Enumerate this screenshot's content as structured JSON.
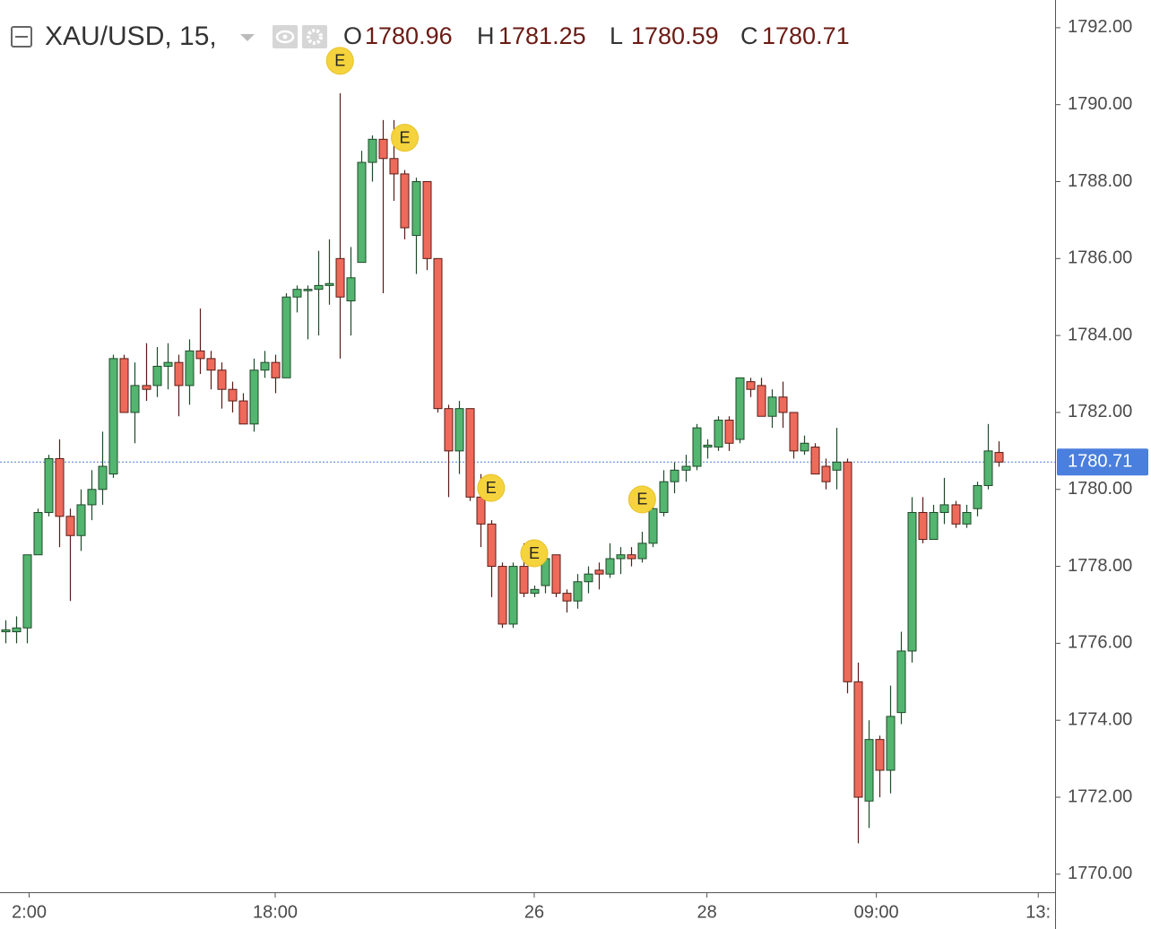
{
  "chart_data": {
    "type": "candlestick",
    "title": "XAU/USD, 15,",
    "ohlc_labels": [
      "O",
      "H",
      "L",
      "C"
    ],
    "up_color": "#53b56f",
    "down_color": "#ee6a5a",
    "x": [
      0,
      1,
      2,
      3,
      4,
      5,
      6,
      7,
      8,
      9,
      10,
      11,
      12,
      13,
      14,
      15,
      16,
      17,
      18,
      19,
      20,
      21,
      22,
      23,
      24,
      25,
      26,
      27,
      28,
      29,
      30,
      31,
      32,
      33,
      34,
      35,
      36,
      37,
      38,
      39,
      40,
      41,
      42,
      43,
      44,
      45,
      46,
      47,
      48,
      49,
      50,
      51,
      52,
      53,
      54,
      55,
      56,
      57,
      58,
      59,
      60,
      61,
      62,
      63,
      64,
      65,
      66,
      67,
      68,
      69,
      70,
      71,
      72,
      73,
      74,
      75,
      76,
      77,
      78,
      79,
      80,
      81,
      82,
      83,
      84,
      85,
      86,
      87,
      88,
      89,
      90,
      91,
      92
    ],
    "open": [
      1776.3,
      1776.3,
      1776.4,
      1778.3,
      1779.4,
      1780.8,
      1779.3,
      1778.8,
      1779.6,
      1780.0,
      1780.4,
      1783.4,
      1782.0,
      1782.7,
      1782.7,
      1783.2,
      1783.3,
      1782.7,
      1783.6,
      1783.4,
      1783.1,
      1782.6,
      1782.3,
      1781.7,
      1783.1,
      1783.3,
      1782.9,
      1785.0,
      1785.2,
      1785.2,
      1785.3,
      1786.0,
      1784.9,
      1785.9,
      1788.5,
      1789.1,
      1788.6,
      1788.2,
      1786.6,
      1788.0,
      1786.0,
      1782.1,
      1781.0,
      1782.1,
      1779.8,
      1779.1,
      1778.0,
      1776.5,
      1778.0,
      1777.3,
      1777.5,
      1778.3,
      1777.3,
      1777.1,
      1777.6,
      1777.9,
      1777.8,
      1778.2,
      1778.3,
      1778.2,
      1778.6,
      1779.4,
      1780.2,
      1780.5,
      1780.6,
      1781.1,
      1781.1,
      1781.8,
      1781.3,
      1782.8,
      1782.7,
      1781.9,
      1782.4,
      1782.0,
      1781.0,
      1781.1,
      1780.6,
      1780.5,
      1780.71,
      1775.0,
      1771.9,
      1773.5,
      1772.7,
      1774.2,
      1775.8,
      1779.4,
      1778.7,
      1779.4,
      1779.6,
      1779.1,
      1779.5,
      1780.1,
      1780.96
    ],
    "high": [
      1776.6,
      1776.7,
      1778.3,
      1779.5,
      1780.9,
      1781.3,
      1779.5,
      1780.0,
      1780.5,
      1781.5,
      1783.5,
      1783.5,
      1783.3,
      1783.8,
      1783.7,
      1783.8,
      1783.5,
      1783.9,
      1784.7,
      1783.6,
      1783.3,
      1782.8,
      1782.5,
      1783.4,
      1783.6,
      1783.5,
      1785.1,
      1785.3,
      1785.3,
      1786.2,
      1786.5,
      1790.3,
      1786.3,
      1788.8,
      1789.2,
      1789.6,
      1789.6,
      1788.3,
      1788.1,
      1788.0,
      1786.0,
      1782.2,
      1782.3,
      1782.1,
      1780.4,
      1779.2,
      1778.1,
      1778.1,
      1778.6,
      1777.5,
      1778.3,
      1778.3,
      1777.4,
      1777.8,
      1778.0,
      1778.1,
      1778.6,
      1778.5,
      1778.5,
      1778.9,
      1779.7,
      1780.5,
      1780.7,
      1780.9,
      1781.7,
      1781.3,
      1781.9,
      1781.9,
      1782.9,
      1782.9,
      1782.9,
      1782.6,
      1782.8,
      1782.0,
      1781.4,
      1781.2,
      1780.8,
      1781.6,
      1780.8,
      1775.5,
      1774.0,
      1773.6,
      1774.9,
      1776.3,
      1779.8,
      1779.8,
      1779.6,
      1780.3,
      1779.7,
      1779.6,
      1780.2,
      1781.7,
      1781.25
    ],
    "low": [
      1776.0,
      1776.0,
      1776.0,
      1778.3,
      1779.3,
      1778.5,
      1777.1,
      1778.4,
      1779.2,
      1779.6,
      1780.3,
      1782.0,
      1781.2,
      1782.3,
      1782.4,
      1782.6,
      1781.9,
      1782.2,
      1783.0,
      1782.6,
      1782.1,
      1782.0,
      1781.7,
      1781.5,
      1782.9,
      1782.5,
      1782.9,
      1784.6,
      1783.9,
      1784.0,
      1784.8,
      1783.4,
      1784.0,
      1785.9,
      1788.0,
      1785.1,
      1787.5,
      1786.5,
      1785.6,
      1785.7,
      1782.0,
      1779.8,
      1780.4,
      1779.7,
      1778.5,
      1777.2,
      1776.4,
      1776.4,
      1777.2,
      1777.2,
      1777.3,
      1777.2,
      1776.8,
      1776.9,
      1777.3,
      1777.4,
      1777.7,
      1777.8,
      1778.0,
      1778.1,
      1778.5,
      1779.3,
      1779.9,
      1780.2,
      1780.5,
      1780.8,
      1781.0,
      1781.0,
      1781.2,
      1782.4,
      1781.9,
      1781.6,
      1781.6,
      1780.8,
      1780.9,
      1780.4,
      1780.0,
      1780.0,
      1774.7,
      1770.8,
      1771.2,
      1772.0,
      1772.1,
      1773.9,
      1775.5,
      1778.6,
      1778.7,
      1779.1,
      1779.0,
      1779.0,
      1779.3,
      1780.0,
      1780.59
    ],
    "close": [
      1776.35,
      1776.4,
      1778.3,
      1779.4,
      1780.8,
      1779.3,
      1778.8,
      1779.6,
      1780.0,
      1780.6,
      1783.4,
      1782.0,
      1782.7,
      1782.6,
      1783.2,
      1783.3,
      1782.7,
      1783.6,
      1783.4,
      1783.1,
      1782.6,
      1782.3,
      1781.7,
      1783.1,
      1783.3,
      1782.9,
      1785.0,
      1785.2,
      1785.2,
      1785.3,
      1785.35,
      1785.0,
      1785.5,
      1788.5,
      1789.1,
      1788.6,
      1788.2,
      1786.8,
      1788.0,
      1786.0,
      1782.1,
      1781.0,
      1782.1,
      1779.8,
      1779.1,
      1778.0,
      1776.5,
      1778.0,
      1777.3,
      1777.4,
      1778.2,
      1777.3,
      1777.1,
      1777.6,
      1777.8,
      1777.8,
      1778.2,
      1778.3,
      1778.2,
      1778.6,
      1779.5,
      1780.2,
      1780.5,
      1780.6,
      1781.6,
      1781.15,
      1781.8,
      1781.2,
      1782.9,
      1782.6,
      1781.9,
      1782.4,
      1782.0,
      1781.0,
      1781.2,
      1780.4,
      1780.2,
      1780.71,
      1775.0,
      1772.0,
      1773.5,
      1772.7,
      1774.1,
      1775.8,
      1779.4,
      1778.7,
      1779.4,
      1779.6,
      1779.1,
      1779.4,
      1780.1,
      1781.0,
      1780.71
    ],
    "events": [
      {
        "x": 31,
        "label": "E"
      },
      {
        "x": 37,
        "label": "E"
      },
      {
        "x": 45,
        "label": "E"
      },
      {
        "x": 49,
        "label": "E"
      },
      {
        "x": 59,
        "label": "E"
      }
    ],
    "xlim": [
      -0.5,
      97.26
    ],
    "xticks": [
      {
        "value": 2.2,
        "label": "2:00"
      },
      {
        "value": 25,
        "label": "18:00"
      },
      {
        "value": 49,
        "label": "26"
      },
      {
        "value": 65,
        "label": "28"
      },
      {
        "value": 80.7,
        "label": "09:00"
      },
      {
        "value": 95.7,
        "label": "13:"
      }
    ],
    "ylim": [
      1769.53,
      1792.72
    ],
    "yticks": [
      {
        "value": 1770,
        "label": "1770.00"
      },
      {
        "value": 1772,
        "label": "1772.00"
      },
      {
        "value": 1774,
        "label": "1774.00"
      },
      {
        "value": 1776,
        "label": "1776.00"
      },
      {
        "value": 1778,
        "label": "1778.00"
      },
      {
        "value": 1780,
        "label": "1780.00"
      },
      {
        "value": 1782,
        "label": "1782.00"
      },
      {
        "value": 1784,
        "label": "1784.00"
      },
      {
        "value": 1786,
        "label": "1786.00"
      },
      {
        "value": 1788,
        "label": "1788.00"
      },
      {
        "value": 1790,
        "label": "1790.00"
      },
      {
        "value": 1792,
        "label": "1792.00"
      }
    ],
    "price_line_color": "#4a7fdd"
  }
}
